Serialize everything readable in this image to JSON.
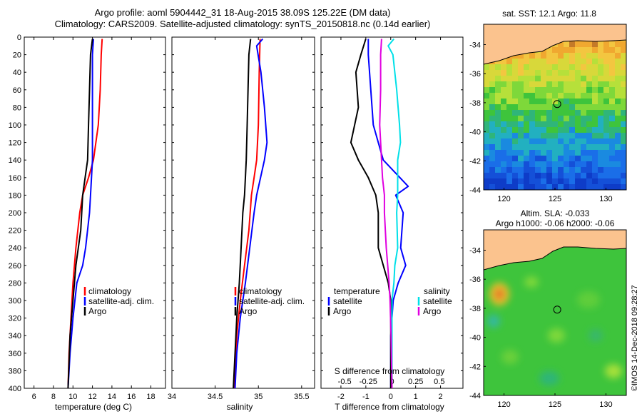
{
  "header": {
    "line1": "Argo profile: aoml 5904442_31 18-Aug-2015 38.09S 125.22E (DM data)",
    "line2": "Climatology: CARS2009. Satellite-adjusted climatology: synTS_20150818.nc (0.14d earlier)"
  },
  "colors": {
    "climatology": "#ff0000",
    "satellite": "#0000ff",
    "argo": "#000000",
    "sat_salinity": "#00e0e8",
    "argo_salinity_diff": "#e000e0",
    "land": "#fbc38e"
  },
  "depth_ticks": [
    "0",
    "20",
    "40",
    "60",
    "80",
    "100",
    "120",
    "140",
    "160",
    "180",
    "200",
    "220",
    "240",
    "260",
    "280",
    "300",
    "320",
    "340",
    "360",
    "380",
    "400"
  ],
  "chart_data": [
    {
      "type": "line",
      "name": "temperature",
      "xlabel": "temperature (deg C)",
      "ylabel": "depth",
      "xlim": [
        5,
        19.5
      ],
      "ylim": [
        400,
        0
      ],
      "x_ticks": [
        "6",
        "8",
        "10",
        "12",
        "14",
        "16",
        "18"
      ],
      "x_tick_values": [
        6,
        8,
        10,
        12,
        14,
        16,
        18
      ],
      "legend": [
        "climatology",
        "satellite-adj. clim.",
        "Argo"
      ],
      "series": [
        {
          "name": "climatology",
          "color": "#ff0000",
          "depth": [
            2,
            20,
            60,
            100,
            140,
            160,
            180,
            200,
            240,
            280,
            320,
            360,
            400
          ],
          "values": [
            13.0,
            12.9,
            12.8,
            12.6,
            12.1,
            11.6,
            11.0,
            10.7,
            10.3,
            10.0,
            9.8,
            9.6,
            9.5
          ]
        },
        {
          "name": "satellite-adj. clim.",
          "color": "#0000ff",
          "depth": [
            2,
            20,
            60,
            100,
            140,
            180,
            200,
            240,
            260,
            280,
            320,
            360,
            400
          ],
          "values": [
            12.1,
            12.0,
            12.0,
            12.0,
            12.0,
            11.8,
            11.7,
            11.3,
            11.0,
            10.4,
            10.0,
            9.7,
            9.5
          ]
        },
        {
          "name": "Argo",
          "color": "#000000",
          "depth": [
            2,
            20,
            60,
            100,
            140,
            180,
            220,
            260,
            300,
            340,
            400
          ],
          "values": [
            12.0,
            11.8,
            11.7,
            11.6,
            11.5,
            11.0,
            10.8,
            10.3,
            10.0,
            9.7,
            9.5
          ]
        }
      ]
    },
    {
      "type": "line",
      "name": "salinity",
      "xlabel": "salinity",
      "ylabel": "depth",
      "xlim": [
        34,
        35.65
      ],
      "ylim": [
        400,
        0
      ],
      "x_ticks": [
        "34",
        "34.5",
        "35",
        "35.5"
      ],
      "x_tick_values": [
        34,
        34.5,
        35,
        35.5
      ],
      "legend": [
        "climatology",
        "satellite-adj. clim.",
        "Argo"
      ],
      "series": [
        {
          "name": "climatology",
          "color": "#ff0000",
          "depth": [
            2,
            40,
            100,
            140,
            160,
            180,
            220,
            260,
            300,
            340,
            400
          ],
          "values": [
            35.02,
            35.01,
            35.0,
            34.98,
            34.95,
            34.92,
            34.89,
            34.84,
            34.79,
            34.75,
            34.72
          ]
        },
        {
          "name": "satellite-adj. clim.",
          "color": "#0000ff",
          "depth": [
            2,
            10,
            40,
            80,
            120,
            140,
            180,
            200,
            240,
            280,
            320,
            360,
            400
          ],
          "values": [
            35.05,
            34.98,
            35.03,
            35.07,
            35.1,
            35.07,
            34.98,
            34.95,
            34.9,
            34.85,
            34.79,
            34.75,
            34.73
          ]
        },
        {
          "name": "Argo",
          "color": "#000000",
          "depth": [
            2,
            20,
            60,
            100,
            140,
            160,
            180,
            200,
            240,
            280,
            320,
            360,
            400
          ],
          "values": [
            34.91,
            34.89,
            34.88,
            34.87,
            34.86,
            34.85,
            34.84,
            34.82,
            34.8,
            34.78,
            34.75,
            34.73,
            34.71
          ]
        }
      ]
    },
    {
      "type": "line",
      "name": "difference from climatology",
      "xlabel": "T difference from climatology",
      "top_axis_label": "S difference from climatology",
      "ylabel": "depth",
      "xlim": [
        -2.8,
        2.9
      ],
      "ylim": [
        400,
        0
      ],
      "x_ticks": [
        "-2",
        "-1",
        "0",
        "1",
        "2"
      ],
      "x_tick_values": [
        -2,
        -1,
        0,
        1,
        2
      ],
      "s_ticks": [
        "-0.5",
        "-0.25",
        "0",
        "0.25",
        "0.5"
      ],
      "s_tick_values": [
        -0.5,
        -0.25,
        0,
        0.25,
        0.5
      ],
      "legend_temperature_title": "temperature",
      "legend_salinity_title": "salinity",
      "legend_temperature": [
        "satellite",
        "Argo"
      ],
      "legend_salinity": [
        "satellite",
        "Argo"
      ],
      "series": [
        {
          "name": "T satellite",
          "color": "#0000ff",
          "axis": "T",
          "depth": [
            2,
            20,
            60,
            100,
            120,
            140,
            170,
            180,
            200,
            240,
            260,
            280,
            300,
            340,
            400
          ],
          "values": [
            -0.9,
            -0.9,
            -0.8,
            -0.7,
            -0.5,
            -0.3,
            0.7,
            0.2,
            0.5,
            0.4,
            0.6,
            0.3,
            0.1,
            0.0,
            0.0
          ]
        },
        {
          "name": "T Argo",
          "color": "#000000",
          "axis": "T",
          "depth": [
            2,
            20,
            40,
            80,
            120,
            140,
            160,
            180,
            200,
            240,
            280,
            300,
            320,
            400
          ],
          "values": [
            -1.0,
            -1.2,
            -1.4,
            -1.3,
            -1.6,
            -1.3,
            -0.9,
            -0.6,
            -0.5,
            -0.5,
            -0.1,
            0.0,
            0.0,
            0.0
          ]
        },
        {
          "name": "S satellite",
          "color": "#00e0e8",
          "axis": "S",
          "depth": [
            2,
            10,
            20,
            60,
            100,
            120,
            140,
            180,
            200,
            240,
            260,
            280,
            300,
            340,
            400
          ],
          "values": [
            0.02,
            -0.04,
            0.01,
            0.05,
            0.08,
            0.09,
            0.06,
            0.06,
            0.05,
            0.06,
            0.03,
            0.02,
            0.0,
            0.0,
            0.0
          ]
        },
        {
          "name": "S Argo",
          "color": "#e000e0",
          "axis": "S",
          "depth": [
            2,
            20,
            60,
            100,
            140,
            160,
            180,
            200,
            240,
            280,
            300,
            340,
            400
          ],
          "values": [
            -0.11,
            -0.12,
            -0.12,
            -0.13,
            -0.11,
            -0.1,
            -0.08,
            -0.08,
            -0.06,
            -0.03,
            -0.02,
            -0.01,
            0.0
          ]
        }
      ]
    },
    {
      "type": "heatmap",
      "name": "sst map",
      "title": "sat. SST: 12.1 Argo: 11.8",
      "x_ticks": [
        "120",
        "125",
        "130"
      ],
      "x_tick_values": [
        120,
        125,
        130
      ],
      "y_ticks": [
        "-34",
        "-36",
        "-38",
        "-40",
        "-42",
        "-44"
      ],
      "y_tick_values": [
        -34,
        -36,
        -38,
        -40,
        -42,
        -44
      ],
      "xlim": [
        118,
        132
      ],
      "ylim": [
        -44,
        -32.6
      ],
      "argo_position": {
        "lon": 125.22,
        "lat": -38.09
      }
    },
    {
      "type": "heatmap",
      "name": "sla map",
      "title_line1": "Altim. SLA: -0.033",
      "title_line2": "Argo h1000: -0.06 h2000: -0.06",
      "x_ticks": [
        "120",
        "125",
        "130"
      ],
      "x_tick_values": [
        120,
        125,
        130
      ],
      "y_ticks": [
        "-34",
        "-36",
        "-38",
        "-40",
        "-42",
        "-44"
      ],
      "y_tick_values": [
        -34,
        -36,
        -38,
        -40,
        -42,
        -44
      ],
      "xlim": [
        118,
        132
      ],
      "ylim": [
        -44,
        -32.6
      ],
      "argo_position": {
        "lon": 125.22,
        "lat": -38.09
      }
    }
  ],
  "footer": {
    "credit": "©IMOS 14-Dec-2018 09:28:27"
  }
}
